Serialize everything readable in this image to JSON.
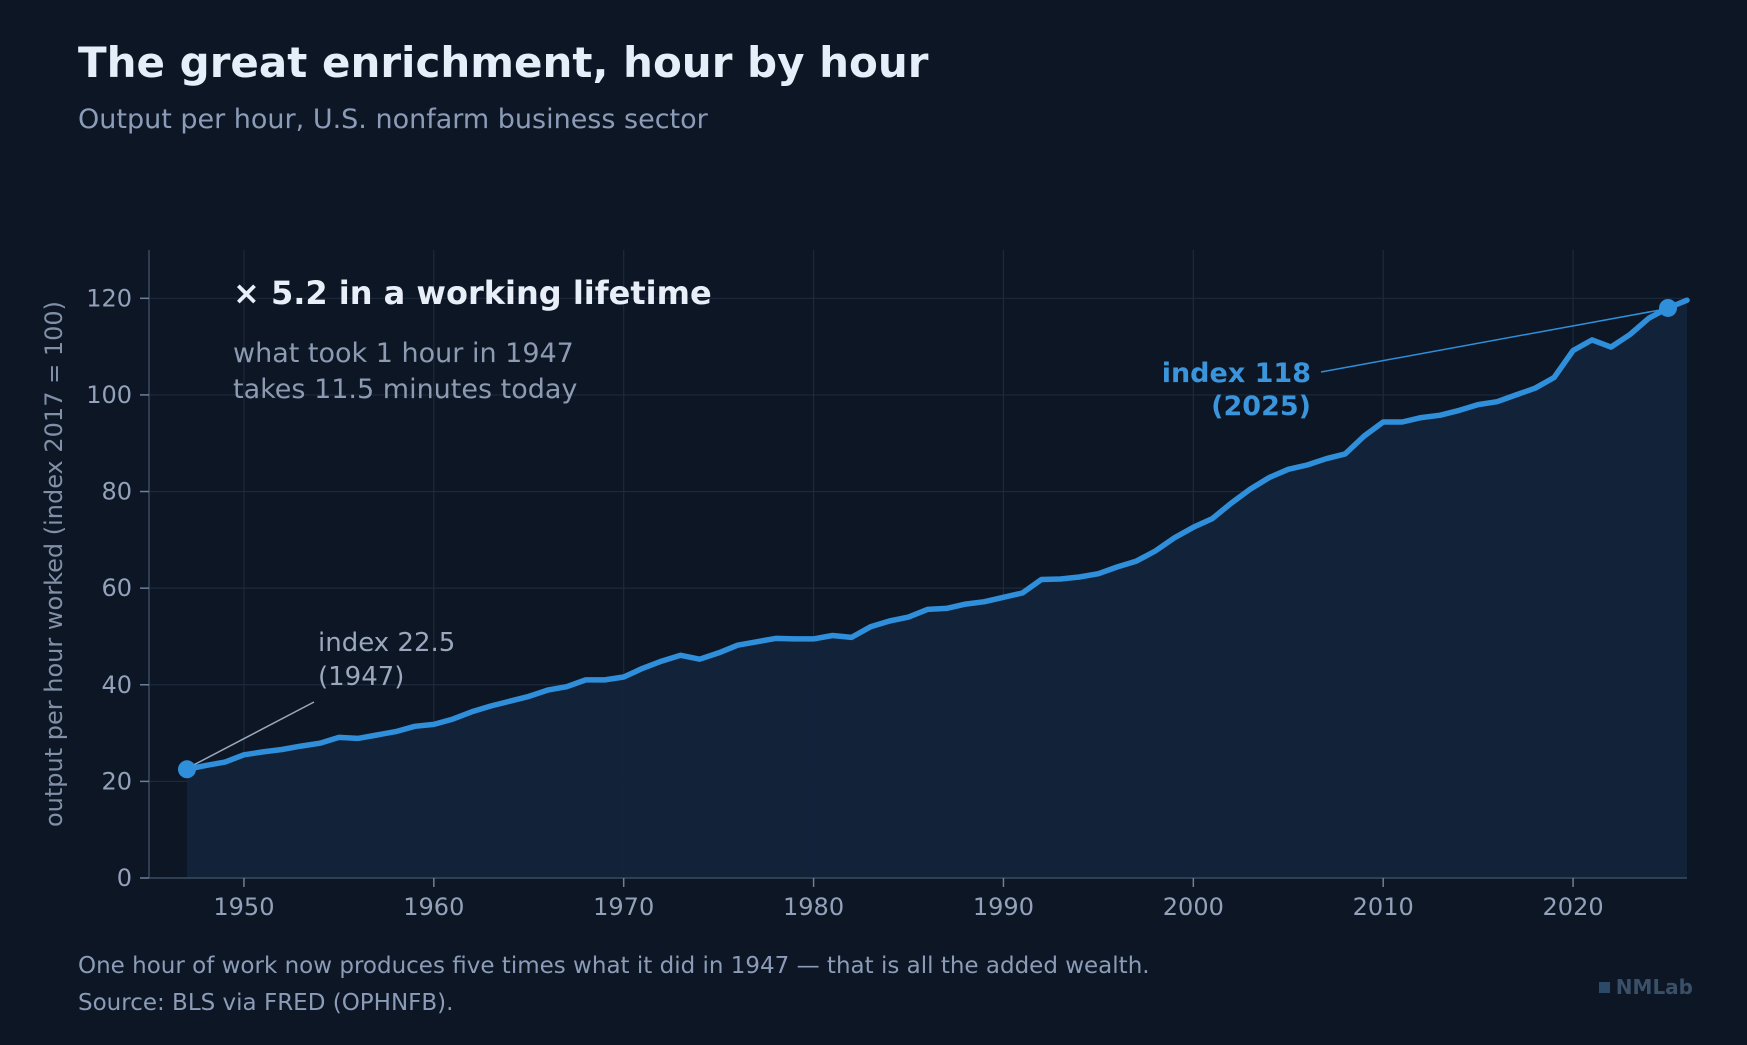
{
  "header": {
    "title": "The great enrichment, hour by hour",
    "subtitle": "Output per hour, U.S. nonfarm business sector"
  },
  "annotations": {
    "headline": "× 5.2 in a working lifetime",
    "body_line1": "what took 1 hour in 1947",
    "body_line2": "takes 11.5 minutes today",
    "start_line1": "index 22.5",
    "start_line2": "(1947)",
    "end_line1": "index 118",
    "end_line2": "(2025)"
  },
  "footer": {
    "note": "One hour of work now produces five times what it did in 1947 — that is all the added wealth.",
    "source": "Source: BLS via FRED (OPHNFB).",
    "brand": "NMLab"
  },
  "colors": {
    "background": "#0c1624",
    "line": "#2f8fdb",
    "area": "#13233b",
    "grid": "#1c2a3d"
  },
  "chart_data": {
    "type": "area",
    "title": "The great enrichment, hour by hour",
    "subtitle": "Output per hour, U.S. nonfarm business sector",
    "xlabel": "",
    "ylabel": "output per hour worked (index 2017 = 100)",
    "xlim": [
      1945,
      2026
    ],
    "ylim": [
      0,
      130
    ],
    "xticks": [
      1950,
      1960,
      1970,
      1980,
      1990,
      2000,
      2010,
      2020
    ],
    "yticks": [
      0,
      20,
      40,
      60,
      80,
      100,
      120
    ],
    "grid": true,
    "series": [
      {
        "x": [
          1947,
          1948,
          1949,
          1950,
          1951,
          1952,
          1953,
          1954,
          1955,
          1956,
          1957,
          1958,
          1959,
          1960,
          1961,
          1962,
          1963,
          1964,
          1965,
          1966,
          1967,
          1968,
          1969,
          1970,
          1971,
          1972,
          1973,
          1974,
          1975,
          1976,
          1977,
          1978,
          1979,
          1980,
          1981,
          1982,
          1983,
          1984,
          1985,
          1986,
          1987,
          1988,
          1989,
          1990,
          1991,
          1992,
          1993,
          1994,
          1995,
          1996,
          1997,
          1998,
          1999,
          2000,
          2001,
          2002,
          2003,
          2004,
          2005,
          2006,
          2007,
          2008,
          2009,
          2010,
          2011,
          2012,
          2013,
          2014,
          2015,
          2016,
          2017,
          2018,
          2019,
          2020,
          2021,
          2022,
          2023,
          2024,
          2025,
          2026
        ],
        "y": [
          22.5,
          23.3,
          24.0,
          25.5,
          26.1,
          26.6,
          27.3,
          27.9,
          29.1,
          28.9,
          29.6,
          30.3,
          31.4,
          31.8,
          32.9,
          34.4,
          35.6,
          36.6,
          37.6,
          38.9,
          39.6,
          41.0,
          41.0,
          41.6,
          43.4,
          44.9,
          46.1,
          45.3,
          46.6,
          48.2,
          48.9,
          49.6,
          49.5,
          49.5,
          50.2,
          49.8,
          52.0,
          53.2,
          54.0,
          55.6,
          55.8,
          56.7,
          57.2,
          58.1,
          59.0,
          61.8,
          61.9,
          62.3,
          63.0,
          64.4,
          65.6,
          67.7,
          70.4,
          72.6,
          74.4,
          77.6,
          80.5,
          82.9,
          84.6,
          85.5,
          86.8,
          87.8,
          91.5,
          94.4,
          94.4,
          95.3,
          95.8,
          96.8,
          98.0,
          98.6,
          100.0,
          101.4,
          103.6,
          109.2,
          111.4,
          109.9,
          112.5,
          115.9,
          118.0,
          119.6
        ]
      }
    ],
    "highlights": [
      {
        "x": 1947,
        "y": 22.5
      },
      {
        "x": 2025,
        "y": 118
      }
    ]
  }
}
